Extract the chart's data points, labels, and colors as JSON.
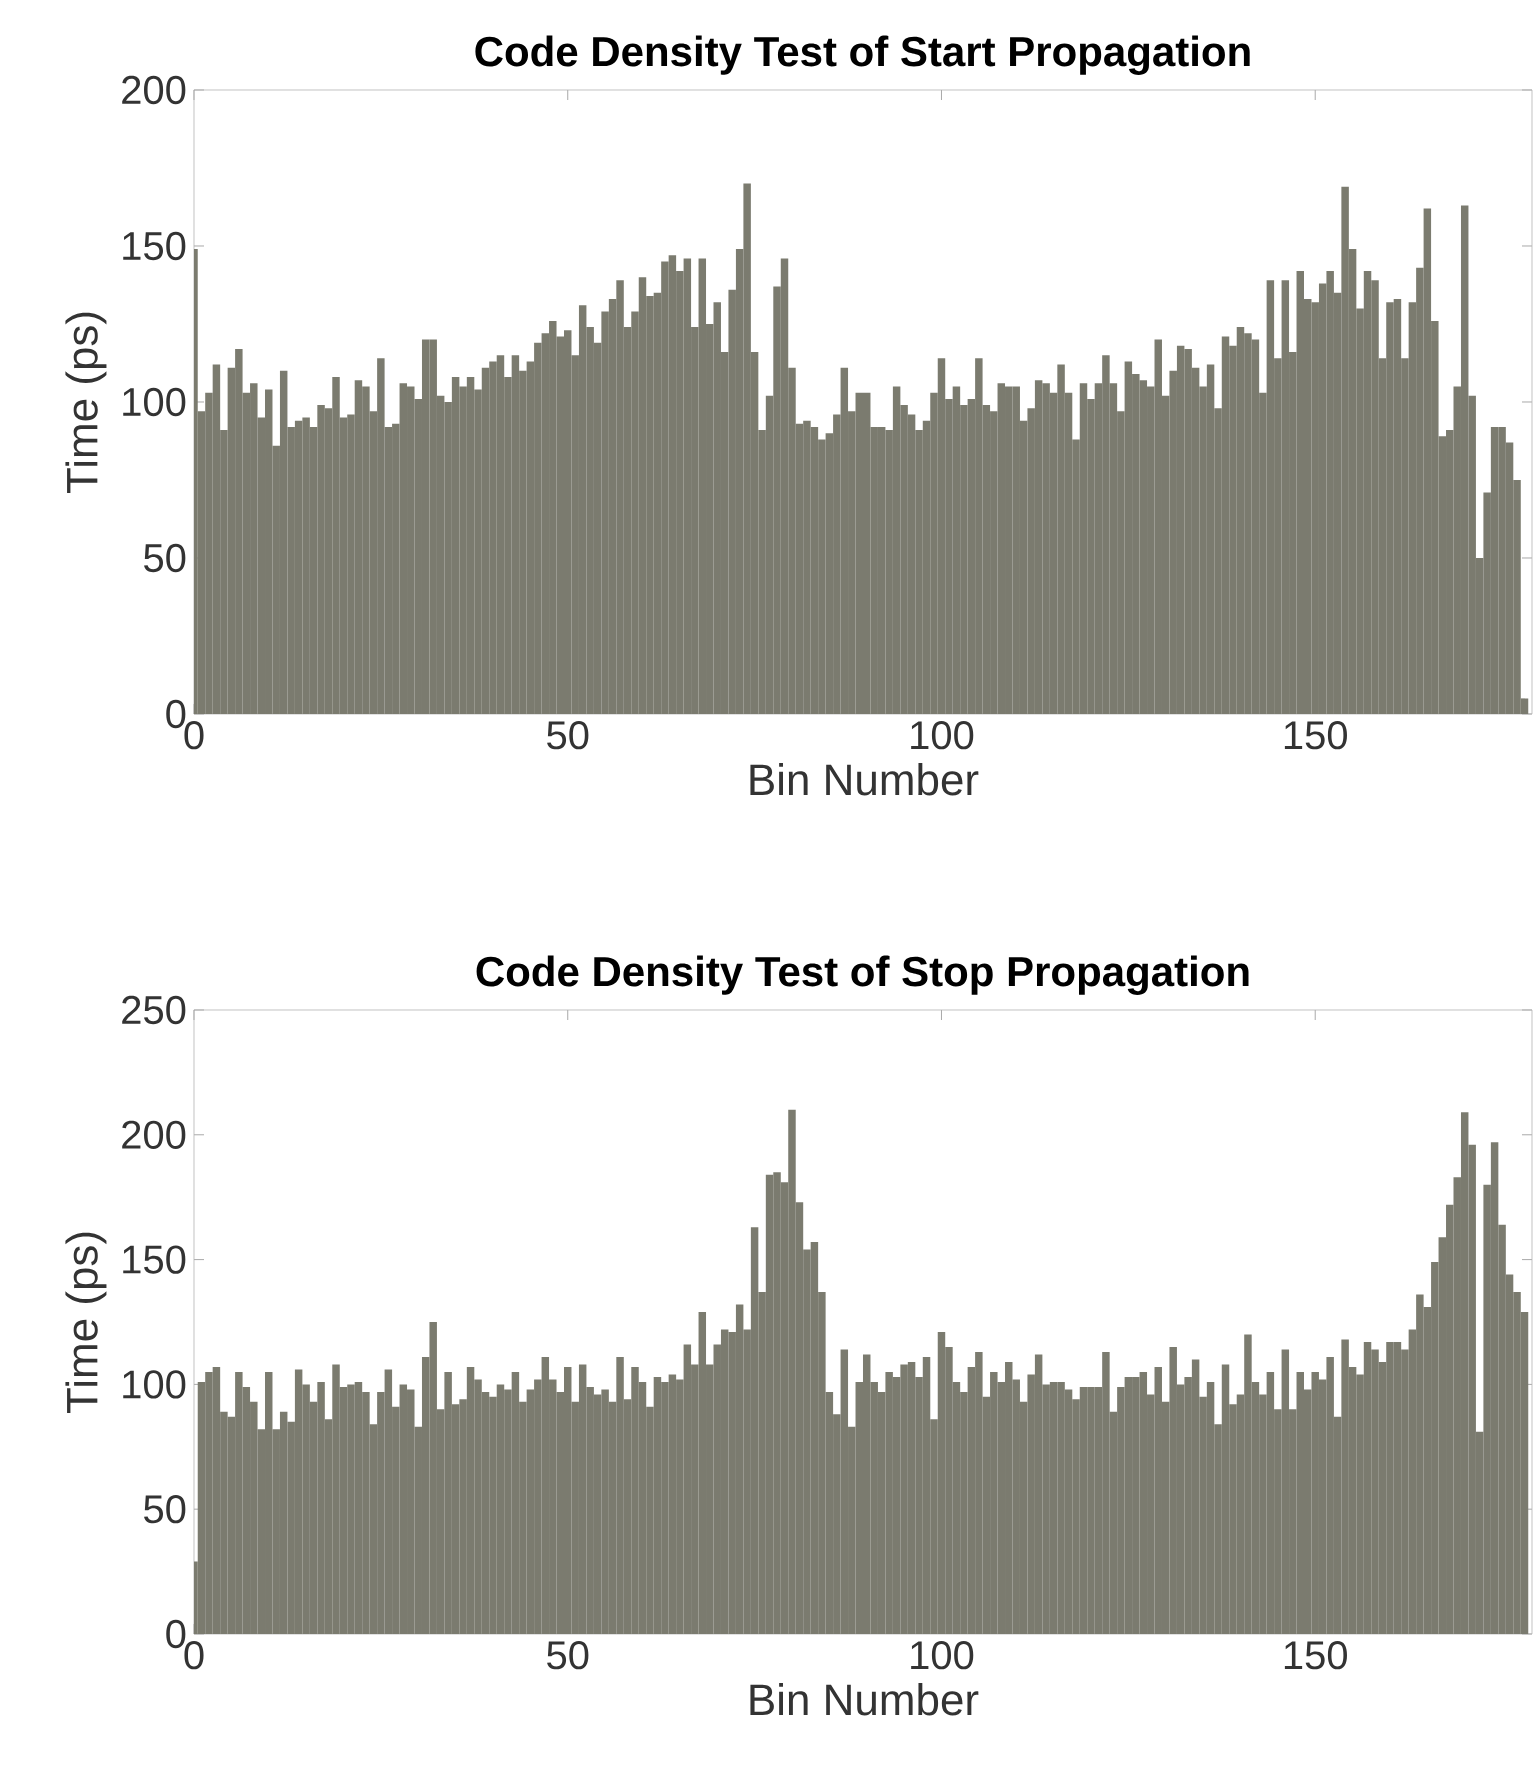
{
  "chart_data": [
    {
      "type": "bar",
      "title": "Code Density Test of Start Propagation",
      "xlabel": "Bin Number",
      "ylabel": "Time (ps)",
      "color": "#7b7b6f",
      "x": [
        0,
        1,
        2,
        3,
        4,
        5,
        6,
        7,
        8,
        9,
        10,
        11,
        12,
        13,
        14,
        15,
        16,
        17,
        18,
        19,
        20,
        21,
        22,
        23,
        24,
        25,
        26,
        27,
        28,
        29,
        30,
        31,
        32,
        33,
        34,
        35,
        36,
        37,
        38,
        39,
        40,
        41,
        42,
        43,
        44,
        45,
        46,
        47,
        48,
        49,
        50,
        51,
        52,
        53,
        54,
        55,
        56,
        57,
        58,
        59,
        60,
        61,
        62,
        63,
        64,
        65,
        66,
        67,
        68,
        69,
        70,
        71,
        72,
        73,
        74,
        75,
        76,
        77,
        78,
        79,
        80,
        81,
        82,
        83,
        84,
        85,
        86,
        87,
        88,
        89,
        90,
        91,
        92,
        93,
        94,
        95,
        96,
        97,
        98,
        99,
        100,
        101,
        102,
        103,
        104,
        105,
        106,
        107,
        108,
        109,
        110,
        111,
        112,
        113,
        114,
        115,
        116,
        117,
        118,
        119,
        120,
        121,
        122,
        123,
        124,
        125,
        126,
        127,
        128,
        129,
        130,
        131,
        132,
        133,
        134,
        135,
        136,
        137,
        138,
        139,
        140,
        141,
        142,
        143,
        144,
        145,
        146,
        147,
        148,
        149,
        150,
        151,
        152,
        153,
        154,
        155,
        156,
        157,
        158,
        159,
        160,
        161,
        162,
        163,
        164,
        165,
        166,
        167,
        168,
        169,
        170,
        171,
        172,
        173,
        174,
        175,
        176,
        177,
        178
      ],
      "values": [
        149,
        97,
        103,
        112,
        91,
        111,
        117,
        103,
        106,
        95,
        104,
        86,
        110,
        92,
        94,
        95,
        92,
        99,
        98,
        108,
        95,
        96,
        107,
        105,
        97,
        114,
        92,
        93,
        106,
        105,
        101,
        120,
        120,
        102,
        100,
        108,
        105,
        108,
        104,
        111,
        113,
        115,
        108,
        115,
        110,
        113,
        119,
        122,
        126,
        121,
        123,
        115,
        131,
        124,
        119,
        129,
        133,
        139,
        124,
        129,
        140,
        134,
        135,
        145,
        147,
        142,
        146,
        124,
        146,
        125,
        132,
        116,
        136,
        149,
        170,
        116,
        91,
        102,
        137,
        146,
        111,
        93,
        94,
        92,
        88,
        90,
        96,
        111,
        97,
        103,
        103,
        92,
        92,
        91,
        105,
        99,
        96,
        91,
        94,
        103,
        114,
        101,
        105,
        99,
        101,
        114,
        99,
        97,
        106,
        105,
        105,
        94,
        98,
        107,
        106,
        103,
        112,
        103,
        88,
        106,
        101,
        106,
        115,
        106,
        97,
        113,
        109,
        107,
        105,
        120,
        102,
        110,
        118,
        117,
        111,
        105,
        112,
        98,
        121,
        118,
        124,
        122,
        120,
        103,
        139,
        114,
        139,
        116,
        142,
        133,
        132,
        138,
        142,
        135,
        169,
        149,
        130,
        142,
        139,
        114,
        132,
        133,
        114,
        132,
        143,
        162,
        126,
        89,
        91,
        105,
        163,
        102,
        50,
        71,
        92,
        92,
        87,
        75,
        5
      ],
      "xlim": [
        0,
        179
      ],
      "ylim": [
        0,
        200
      ],
      "xticks": [
        0,
        50,
        100,
        150
      ],
      "yticks": [
        0,
        50,
        100,
        150,
        200
      ]
    },
    {
      "type": "bar",
      "title": "Code Density Test of Stop Propagation",
      "xlabel": "Bin Number",
      "ylabel": "Time (ps)",
      "color": "#7b7b6f",
      "x": [
        0,
        1,
        2,
        3,
        4,
        5,
        6,
        7,
        8,
        9,
        10,
        11,
        12,
        13,
        14,
        15,
        16,
        17,
        18,
        19,
        20,
        21,
        22,
        23,
        24,
        25,
        26,
        27,
        28,
        29,
        30,
        31,
        32,
        33,
        34,
        35,
        36,
        37,
        38,
        39,
        40,
        41,
        42,
        43,
        44,
        45,
        46,
        47,
        48,
        49,
        50,
        51,
        52,
        53,
        54,
        55,
        56,
        57,
        58,
        59,
        60,
        61,
        62,
        63,
        64,
        65,
        66,
        67,
        68,
        69,
        70,
        71,
        72,
        73,
        74,
        75,
        76,
        77,
        78,
        79,
        80,
        81,
        82,
        83,
        84,
        85,
        86,
        87,
        88,
        89,
        90,
        91,
        92,
        93,
        94,
        95,
        96,
        97,
        98,
        99,
        100,
        101,
        102,
        103,
        104,
        105,
        106,
        107,
        108,
        109,
        110,
        111,
        112,
        113,
        114,
        115,
        116,
        117,
        118,
        119,
        120,
        121,
        122,
        123,
        124,
        125,
        126,
        127,
        128,
        129,
        130,
        131,
        132,
        133,
        134,
        135,
        136,
        137,
        138,
        139,
        140,
        141,
        142,
        143,
        144,
        145,
        146,
        147,
        148,
        149,
        150,
        151,
        152,
        153,
        154,
        155,
        156,
        157,
        158,
        159,
        160,
        161,
        162,
        163,
        164,
        165,
        166,
        167,
        168,
        169,
        170,
        171,
        172,
        173,
        174,
        175,
        176,
        177,
        178
      ],
      "values": [
        29,
        101,
        105,
        107,
        89,
        87,
        105,
        99,
        93,
        82,
        105,
        82,
        89,
        85,
        106,
        100,
        93,
        101,
        86,
        108,
        99,
        100,
        101,
        97,
        84,
        97,
        106,
        91,
        100,
        98,
        83,
        111,
        125,
        90,
        105,
        92,
        94,
        107,
        102,
        97,
        95,
        100,
        98,
        105,
        93,
        98,
        102,
        111,
        102,
        97,
        107,
        93,
        108,
        99,
        96,
        98,
        93,
        111,
        94,
        107,
        101,
        91,
        103,
        101,
        104,
        102,
        116,
        108,
        129,
        108,
        116,
        122,
        121,
        132,
        122,
        163,
        137,
        184,
        185,
        181,
        210,
        173,
        154,
        157,
        137,
        97,
        88,
        114,
        83,
        101,
        112,
        101,
        97,
        105,
        103,
        108,
        109,
        103,
        111,
        86,
        121,
        115,
        101,
        97,
        107,
        113,
        95,
        105,
        101,
        109,
        102,
        93,
        104,
        112,
        100,
        101,
        101,
        98,
        94,
        99,
        99,
        99,
        113,
        89,
        99,
        103,
        103,
        105,
        96,
        107,
        93,
        115,
        100,
        103,
        110,
        95,
        101,
        84,
        108,
        92,
        96,
        120,
        101,
        96,
        105,
        90,
        114,
        90,
        105,
        98,
        105,
        102,
        111,
        87,
        118,
        107,
        104,
        117,
        114,
        109,
        117,
        117,
        114,
        122,
        136,
        131,
        149,
        159,
        172,
        183,
        209,
        196,
        81,
        180,
        197,
        164,
        144,
        137,
        129
      ],
      "xlim": [
        0,
        179
      ],
      "ylim": [
        0,
        250
      ],
      "xticks": [
        0,
        50,
        100,
        150
      ],
      "yticks": [
        0,
        50,
        100,
        150,
        200,
        250
      ]
    }
  ]
}
